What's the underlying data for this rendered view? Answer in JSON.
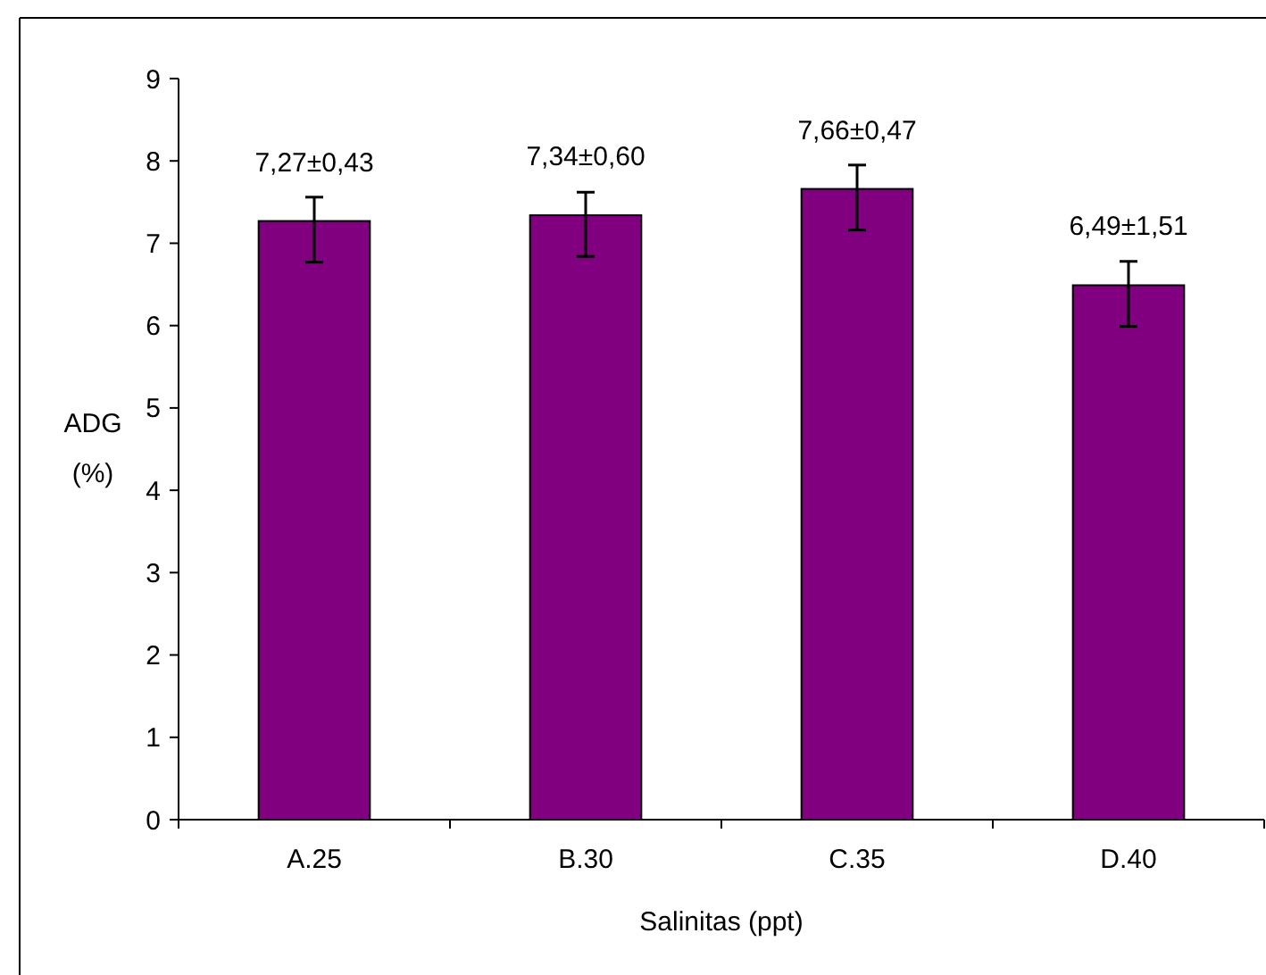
{
  "chart_data": {
    "type": "bar",
    "xlabel": "Salinitas (ppt)",
    "ylabel": "ADG\n(%)",
    "categories": [
      "A.25",
      "B.30",
      "C.35",
      "D.40"
    ],
    "values": [
      7.27,
      7.34,
      7.66,
      6.49
    ],
    "errors": [
      [
        6.77,
        7.56
      ],
      [
        6.84,
        7.62
      ],
      [
        7.16,
        7.95
      ],
      [
        5.99,
        6.78
      ]
    ],
    "value_labels": [
      "7,27±0,43",
      "7,34±0,60",
      "7,66±0,47",
      "6,49±1,51"
    ],
    "color": "#800080",
    "ylim": [
      0,
      9
    ],
    "yticks": [
      0,
      1,
      2,
      3,
      4,
      5,
      6,
      7,
      8,
      9
    ],
    "grid": false
  }
}
